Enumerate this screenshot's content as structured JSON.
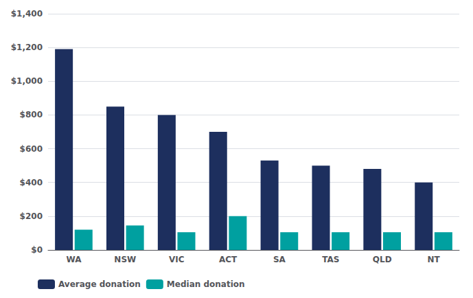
{
  "chart_data": {
    "type": "bar",
    "categories": [
      "WA",
      "NSW",
      "VIC",
      "ACT",
      "SA",
      "TAS",
      "QLD",
      "NT"
    ],
    "series": [
      {
        "name": "Average donation",
        "color": "#1d2f5e",
        "values": [
          1190,
          850,
          800,
          700,
          530,
          500,
          480,
          400
        ]
      },
      {
        "name": "Median donation",
        "color": "#00a0a0",
        "values": [
          120,
          145,
          105,
          200,
          105,
          105,
          105,
          105
        ]
      }
    ],
    "ylim": [
      0,
      1400
    ],
    "yticks": [
      {
        "value": 0,
        "label": "$0"
      },
      {
        "value": 200,
        "label": "$200"
      },
      {
        "value": 400,
        "label": "$400"
      },
      {
        "value": 600,
        "label": "$600"
      },
      {
        "value": 800,
        "label": "$800"
      },
      {
        "value": 1000,
        "label": "$1,000"
      },
      {
        "value": 1200,
        "label": "$1,200"
      },
      {
        "value": 1400,
        "label": "$1,400"
      }
    ],
    "grid": true,
    "legend": "lower left"
  }
}
